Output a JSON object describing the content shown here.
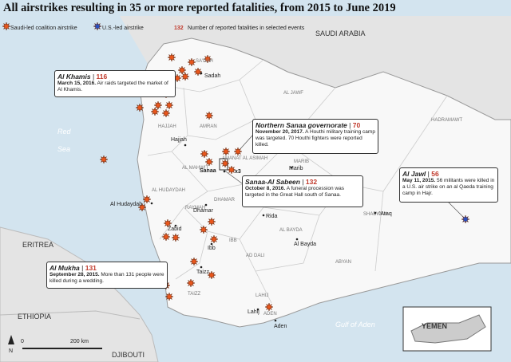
{
  "title": "All airstrikes resulting in 35 or more reported fatalities, from 2015 to June 2019",
  "legend": {
    "saudi": "Saudi-led coalition airstrike",
    "us": "U.S.-led airstrike",
    "count_example": 132,
    "count_text": "Number of reported fatalities in selected events"
  },
  "countries": [
    "SAUDI ARABIA",
    "ERITREA",
    "ETHIOPIA",
    "DJIBOUTI",
    "YEMEN"
  ],
  "waters": [
    "Red",
    "Sea",
    "Gulf of Aden"
  ],
  "regions": [
    "SA'DAH",
    "AL JAWF",
    "HADRAMAWT",
    "HAJJAH",
    "AMRAN",
    "AMANAT AL ASIMAH",
    "AL MAHWIT",
    "MARIB",
    "AL HUDAYDAH",
    "RAYMAH",
    "DHAMAR",
    "SHABWAH",
    "IBB",
    "AL BAYDA",
    "AD DALI",
    "TAIZZ",
    "ABYAN",
    "LAHIJ",
    "ADEN"
  ],
  "cities": [
    "Sadah",
    "Hajjah",
    "Sanaa",
    "Marib",
    "Al Hudaydah",
    "Dhamar",
    "Rida",
    "Zabid",
    "Ibb",
    "Al Bayda",
    "Taizz",
    "Lahij",
    "Aden",
    "'Ataq"
  ],
  "multiplier": "x3",
  "callouts": [
    {
      "place": "Al Khamis",
      "fatalities": 116,
      "date": "March 15, 2016.",
      "text": "Air raids targeted the market of Al Khamis."
    },
    {
      "place": "Northern Sanaa governorate",
      "fatalities": 70,
      "date": "November 20, 2017.",
      "text": "A Houthi military training camp was targeted. 70 Houthi fighters were reported killed."
    },
    {
      "place": "Sanaa-Al Sabeen",
      "fatalities": 132,
      "date": "October 8, 2016.",
      "text": "A funeral procession was targeted in the Great Hall south of Sanaa."
    },
    {
      "place": "Al Jawl",
      "fatalities": 56,
      "date": "May 11, 2015.",
      "text": "56 militants were killed in a U.S. air strike on an al Qaeda training camp in Hajr."
    },
    {
      "place": "Al Mukha",
      "fatalities": 131,
      "date": "September 28, 2015.",
      "text": "More than 131 people were killed during a wedding."
    }
  ],
  "scale": {
    "zero": "0",
    "distance": "200 km",
    "north": "N"
  }
}
